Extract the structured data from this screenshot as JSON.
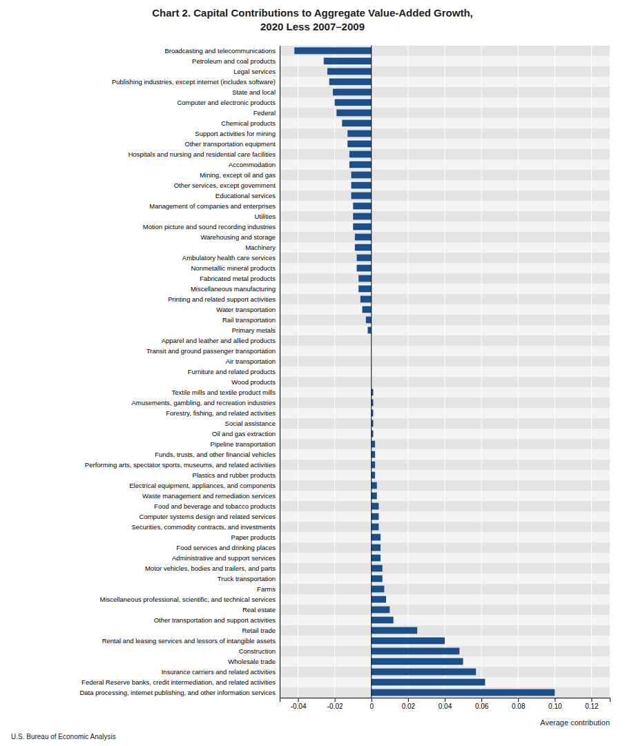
{
  "chart_data": {
    "type": "bar",
    "orientation": "horizontal",
    "title": "Chart 2. Capital Contributions to Aggregate Value-Added Growth,\n2020 Less 2007–2009",
    "xlabel": "Average contribution",
    "source": "U.S. Bureau of Economic Analysis",
    "categories": [
      "Data processing, internet publishing, and other information services",
      "Federal Reserve banks, credit intermediation, and related activities",
      "Insurance carriers and related activities",
      "Wholesale trade",
      "Construction",
      "Rental and leasing services and lessors of intangible assets",
      "Retail trade",
      "Other transportation and support activities",
      "Real estate",
      "Miscellaneous professional, scientific, and technical services",
      "Farms",
      "Truck transportation",
      "Motor vehicles, bodies and trailers, and parts",
      "Administrative and support services",
      "Food services and drinking places",
      "Paper products",
      "Securities, commodity contracts, and investments",
      "Computer systems design and related services",
      "Food and beverage and tobacco products",
      "Waste management and remediation services",
      "Electrical equipment, appliances, and components",
      "Plastics and rubber products",
      "Performing arts, spectator sports, museums, and related activities",
      "Funds, trusts, and other financial vehicles",
      "Pipeline transportation",
      "Oil and gas extraction",
      "Social assistance",
      "Forestry, fishing, and related activities",
      "Amusements, gambling, and recreation industries",
      "Textile mills and textile product mills",
      "Wood products",
      "Furniture and related products",
      "Air transportation",
      "Transit and ground passenger transportation",
      "Apparel and leather and allied products",
      "Primary metals",
      "Rail transportation",
      "Water transportation",
      "Printing and related support activities",
      "Miscellaneous manufacturing",
      "Fabricated metal products",
      "Nonmetallic mineral products",
      "Ambulatory health care services",
      "Machinery",
      "Warehousing and storage",
      "Motion picture and sound recording industries",
      "Utilities",
      "Management of companies and enterprises",
      "Educational services",
      "Other services, except government",
      "Mining, except oil and gas",
      "Accommodation",
      "Hospitals and nursing and residential care facilities",
      "Other transportation equipment",
      "Support activities for mining",
      "Chemical products",
      "Federal",
      "Computer and electronic products",
      "State and local",
      "Publishing industries, except internet (includes software)",
      "Legal services",
      "Petroleum and coal products",
      "Broadcasting and telecommunications"
    ],
    "values": [
      0.1,
      0.062,
      0.057,
      0.05,
      0.048,
      0.04,
      0.025,
      0.012,
      0.01,
      0.008,
      0.007,
      0.006,
      0.006,
      0.005,
      0.005,
      0.005,
      0.004,
      0.004,
      0.004,
      0.003,
      0.003,
      0.002,
      0.002,
      0.002,
      0.002,
      0.001,
      0.001,
      0.001,
      0.001,
      0.001,
      0.0,
      0.0,
      0.0,
      0.0,
      0.0,
      -0.002,
      -0.003,
      -0.005,
      -0.006,
      -0.007,
      -0.007,
      -0.008,
      -0.008,
      -0.009,
      -0.009,
      -0.01,
      -0.01,
      -0.01,
      -0.011,
      -0.011,
      -0.011,
      -0.012,
      -0.012,
      -0.013,
      -0.013,
      -0.016,
      -0.019,
      -0.02,
      -0.021,
      -0.023,
      -0.024,
      -0.026,
      -0.042
    ],
    "color": "#1a4f8a",
    "xlim": [
      -0.05,
      0.13
    ],
    "xticks": [
      -0.04,
      -0.02,
      0,
      0.02,
      0.04,
      0.06,
      0.08,
      {
        "value": 0.1,
        "label": "0.10"
      },
      0.12
    ],
    "grid": true
  }
}
